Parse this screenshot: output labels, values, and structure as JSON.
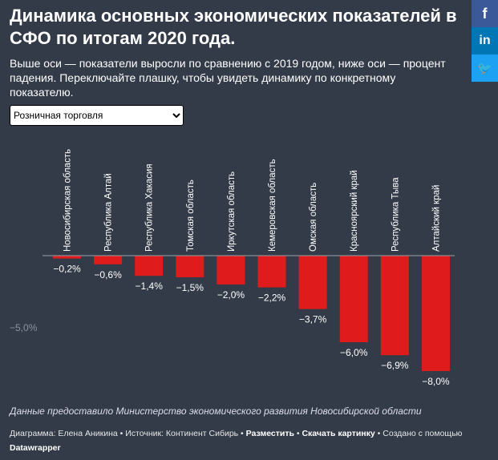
{
  "title": "Динамика основных экономических показателей в СФО по итогам 2020 года.",
  "description": "Выше оси — показатели выросли по сравнению с 2019 годом, ниже оси — процент падения. Переключайте плашку, чтобы увидеть динамику по конкретному показателю.",
  "selector": {
    "value": "Розничная торговля"
  },
  "social": {
    "facebook": "f",
    "linkedin": "in",
    "twitter": "🐦"
  },
  "colors": {
    "bar": "#e01b1b",
    "background": "#333b48"
  },
  "chart_data": {
    "type": "bar",
    "categories": [
      "Новосибирская область",
      "Республика Алтай",
      "Республика Хакасия",
      "Томская область",
      "Иркутская область",
      "Кемеровская область",
      "Омская область",
      "Красноярский край",
      "Республика Тыва",
      "Алтайский край"
    ],
    "values": [
      -0.2,
      -0.6,
      -1.4,
      -1.5,
      -2.0,
      -2.2,
      -3.7,
      -6.0,
      -6.9,
      -8.0
    ],
    "value_labels": [
      "−0,2%",
      "−0,6%",
      "−1,4%",
      "−1,5%",
      "−2,0%",
      "−2,2%",
      "−3,7%",
      "−6,0%",
      "−6,9%",
      "−8,0%"
    ],
    "y_ticks": [
      {
        "value": -5,
        "label": "−5,0%"
      }
    ],
    "ylim": [
      -8,
      0
    ],
    "unit": "%"
  },
  "note": "Данные предоставило Министерство экономического развития Новосибирской области",
  "credits": {
    "chart": "Диаграмма: Елена Аникина",
    "source": "Источник: Континент Сибирь",
    "embed": "Разместить",
    "download": "Скачать картинку",
    "created": "Создано с помощью",
    "datawrapper": "Datawrapper"
  }
}
